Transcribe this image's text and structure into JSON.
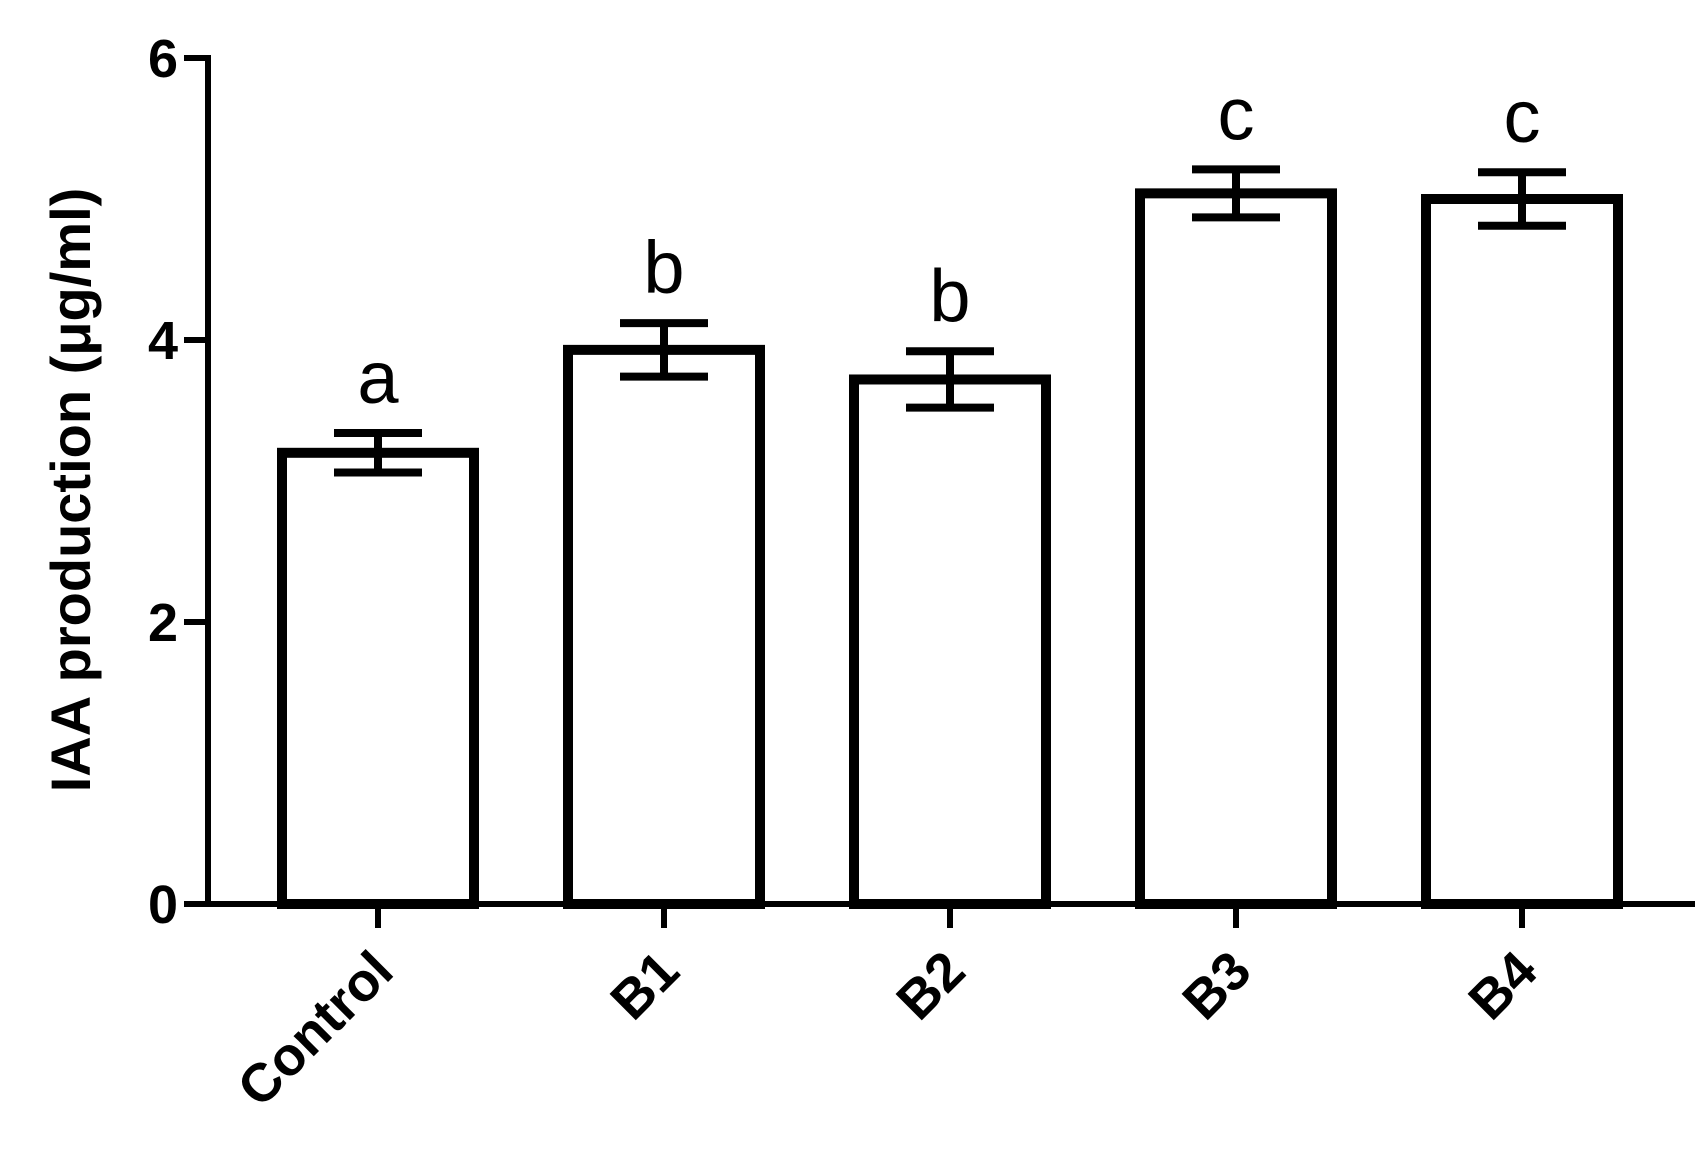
{
  "chart_data": {
    "type": "bar",
    "title": "",
    "xlabel": "",
    "ylabel": "IAA production (μg/ml)",
    "ylim": [
      0,
      6
    ],
    "yticks": [
      0,
      2,
      4,
      6
    ],
    "grid": false,
    "legend": "none",
    "categories": [
      "Control",
      "B1",
      "B2",
      "B3",
      "B4"
    ],
    "values": [
      3.2,
      3.93,
      3.72,
      5.04,
      5.0
    ],
    "errors": [
      0.14,
      0.19,
      0.2,
      0.17,
      0.19
    ],
    "annotations": [
      "a",
      "b",
      "b",
      "c",
      "c"
    ],
    "colors": {
      "bar_fill": "#ffffff",
      "bar_edge": "#000000"
    }
  }
}
